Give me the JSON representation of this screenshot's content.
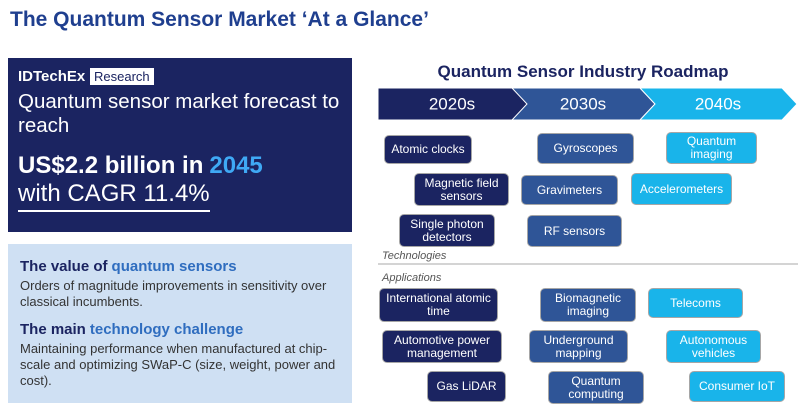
{
  "title": "The Quantum Sensor Market ‘At a Glance’",
  "summary": {
    "brand": "IDTechEx",
    "brand_tag": "Research",
    "lead": "Quantum sensor market forecast to reach",
    "headline_prefix": "US$2.2 billion in",
    "headline_highlight": "2045",
    "cagr": "with CAGR 11.4%"
  },
  "value": {
    "heading_prefix": "The value of",
    "heading_highlight": "quantum sensors",
    "text": "Orders of magnitude improvements in sensitivity over classical incumbents."
  },
  "challenge": {
    "heading_prefix": "The main",
    "heading_highlight": "technology challenge",
    "text": "Maintaining performance when manufactured at chip-scale and optimizing SWaP-C (size, weight, power and cost)."
  },
  "roadmap": {
    "title": "Quantum Sensor Industry Roadmap",
    "technologies_label": "Technologies",
    "applications_label": "Applications",
    "columns": [
      {
        "era": "2020s",
        "color": "#1b2461",
        "technologies": [
          "Atomic clocks",
          "Magnetic field sensors",
          "Single photon detectors"
        ],
        "applications": [
          "International atomic time",
          "Automotive power management",
          "Gas LiDAR"
        ]
      },
      {
        "era": "2030s",
        "color": "#2f5597",
        "technologies": [
          "Gyroscopes",
          "Gravimeters",
          "RF sensors"
        ],
        "applications": [
          "Biomagnetic imaging",
          "Underground mapping",
          "Quantum computing"
        ]
      },
      {
        "era": "2040s",
        "color": "#19b4ea",
        "technologies": [
          "Quantum imaging",
          "Accelerometers"
        ],
        "applications": [
          "Telecoms",
          "Autonomous vehicles",
          "Consumer IoT"
        ]
      }
    ]
  }
}
